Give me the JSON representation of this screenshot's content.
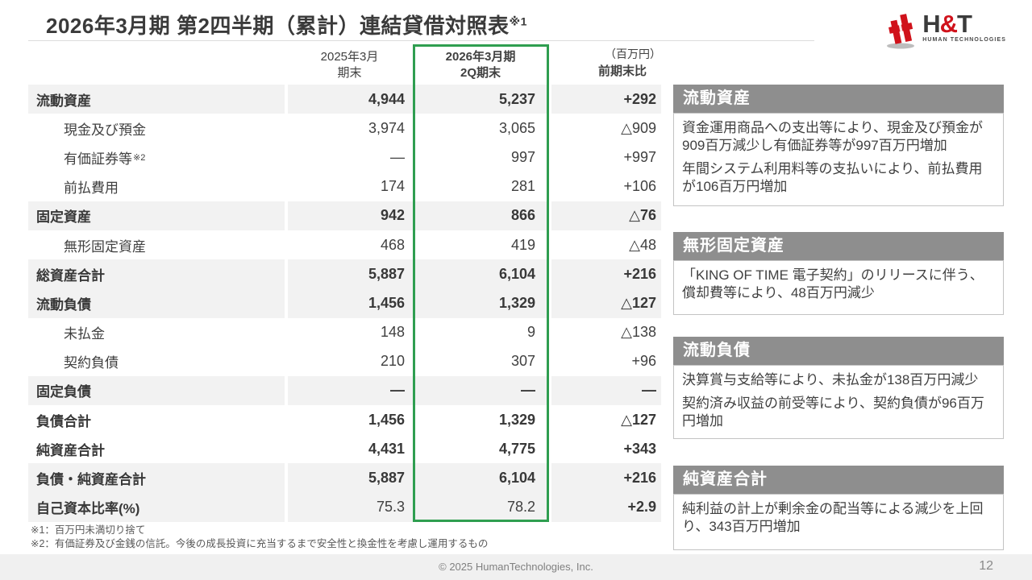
{
  "slide": {
    "title": "2026年3月期 第2四半期（累計）連結貸借対照表",
    "title_note": "※1",
    "page_number": "12",
    "copyright": "© 2025  HumanTechnologies, Inc."
  },
  "logo": {
    "h": "H",
    "amp": "&",
    "t": "T",
    "subtext": "HUMAN TECHNOLOGIES"
  },
  "colors": {
    "accent_green": "#2f9e50",
    "panel_header_gray": "#8e8e8e",
    "row_shade": "#f2f2f2",
    "brand_red": "#d0121b"
  },
  "table": {
    "unit": "（百万円）",
    "col_prev_line1": "2025年3月",
    "col_prev_line2": "期末",
    "col_curr_line1": "2026年3月期",
    "col_curr_line2": "2Q期末",
    "col_diff": "前期末比",
    "rows": [
      {
        "label": "流動資産",
        "indent": false,
        "bold": true,
        "shaded": true,
        "prev": "4,944",
        "curr": "5,237",
        "diff": "+292"
      },
      {
        "label": "現金及び預金",
        "indent": true,
        "bold": false,
        "shaded": false,
        "prev": "3,974",
        "curr": "3,065",
        "diff": "△909"
      },
      {
        "label": "有価証券等",
        "note": "※2",
        "indent": true,
        "bold": false,
        "shaded": false,
        "prev": "—",
        "curr": "997",
        "diff": "+997"
      },
      {
        "label": "前払費用",
        "indent": true,
        "bold": false,
        "shaded": false,
        "prev": "174",
        "curr": "281",
        "diff": "+106"
      },
      {
        "label": "固定資産",
        "indent": false,
        "bold": true,
        "shaded": true,
        "prev": "942",
        "curr": "866",
        "diff": "△76"
      },
      {
        "label": "無形固定資産",
        "indent": true,
        "bold": false,
        "shaded": false,
        "prev": "468",
        "curr": "419",
        "diff": "△48"
      },
      {
        "label": "総資産合計",
        "indent": false,
        "bold": true,
        "shaded": true,
        "prev": "5,887",
        "curr": "6,104",
        "diff": "+216"
      },
      {
        "label": "流動負債",
        "indent": false,
        "bold": true,
        "shaded": true,
        "prev": "1,456",
        "curr": "1,329",
        "diff": "△127"
      },
      {
        "label": "未払金",
        "indent": true,
        "bold": false,
        "shaded": false,
        "prev": "148",
        "curr": "9",
        "diff": "△138"
      },
      {
        "label": "契約負債",
        "indent": true,
        "bold": false,
        "shaded": false,
        "prev": "210",
        "curr": "307",
        "diff": "+96"
      },
      {
        "label": "固定負債",
        "indent": false,
        "bold": true,
        "shaded": true,
        "prev": "—",
        "curr": "—",
        "diff": "—"
      },
      {
        "label": "負債合計",
        "indent": false,
        "bold": true,
        "shaded": false,
        "prev": "1,456",
        "curr": "1,329",
        "diff": "△127"
      },
      {
        "label": "純資産合計",
        "indent": false,
        "bold": true,
        "shaded": false,
        "prev": "4,431",
        "curr": "4,775",
        "diff": "+343"
      },
      {
        "label": "負債・純資産合計",
        "indent": false,
        "bold": true,
        "shaded": true,
        "prev": "5,887",
        "curr": "6,104",
        "diff": "+216"
      },
      {
        "label": "自己資本比率(%)",
        "indent": false,
        "bold": true,
        "shaded": true,
        "values_bold": false,
        "diff_bold": true,
        "prev": "75.3",
        "curr": "78.2",
        "diff": "+2.9"
      }
    ]
  },
  "footnotes": [
    "※1：百万円未満切り捨て",
    "※2：有価証券及び金銭の信託。今後の成長投資に充当するまで安全性と換金性を考慮し運用するもの"
  ],
  "panels": [
    {
      "title": "流動資産",
      "paragraphs": [
        "資金運用商品への支出等により、現金及び預金が909百万減少し有価証券等が997百万円増加",
        "年間システム利用料等の支払いにより、前払費用が106百万円増加"
      ]
    },
    {
      "title": "無形固定資産",
      "paragraphs": [
        "「KING OF TIME 電子契約」のリリースに伴う、償却費等により、48百万円減少"
      ]
    },
    {
      "title": "流動負債",
      "paragraphs": [
        "決算賞与支給等により、未払金が138百万円減少",
        "契約済み収益の前受等により、契約負債が96百万円増加"
      ]
    },
    {
      "title": "純資産合計",
      "paragraphs": [
        "純利益の計上が剰余金の配当等による減少を上回り、343百万円増加"
      ]
    }
  ]
}
